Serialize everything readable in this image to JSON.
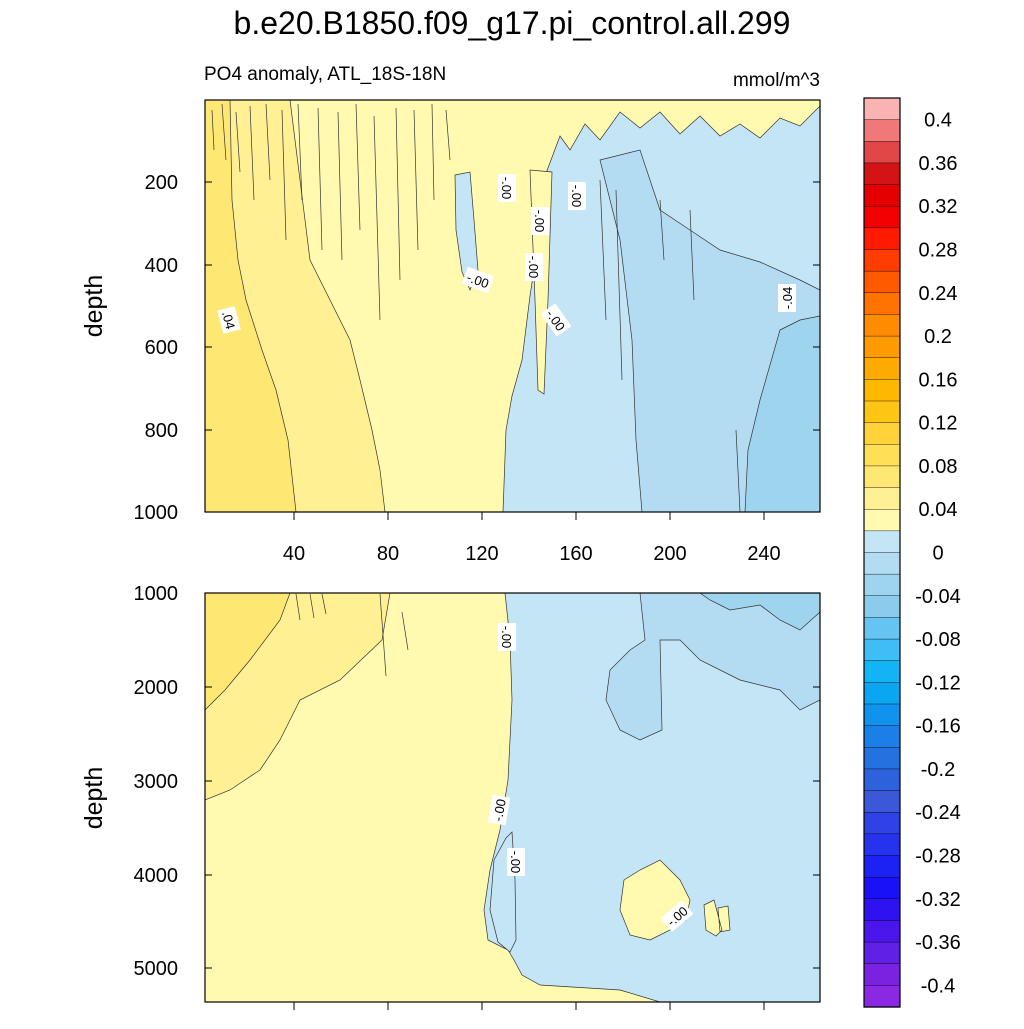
{
  "chart_data": {
    "type": "contour",
    "title": "b.e20.B1850.f09_g17.pi_control.all.299",
    "subtitle_left": "PO4 anomaly, ATL_18S-18N",
    "subtitle_right": "mmol/m^3",
    "colorbar": {
      "labels": [
        "0.4",
        "0.36",
        "0.32",
        "0.28",
        "0.24",
        "0.2",
        "0.16",
        "0.12",
        "0.08",
        "0.04",
        "0",
        "-0.04",
        "-0.08",
        "-0.12",
        "-0.16",
        "-0.2",
        "-0.24",
        "-0.28",
        "-0.32",
        "-0.36",
        "-0.4"
      ],
      "colors": [
        "#f9b3b3",
        "#f07878",
        "#e04848",
        "#d41414",
        "#e40000",
        "#f20000",
        "#ff1a00",
        "#ff3d00",
        "#ff5a00",
        "#ff7400",
        "#ff8c00",
        "#ff9a00",
        "#ffaa00",
        "#ffb800",
        "#ffc514",
        "#ffd23a",
        "#ffdf55",
        "#ffe774",
        "#fff093",
        "#fffaaf",
        "#c4e5f6",
        "#b3dcf2",
        "#9fd4ef",
        "#8ccbeb",
        "#66c4f2",
        "#3fbdf5",
        "#12b4f5",
        "#0aa6f2",
        "#1093ee",
        "#1a80e8",
        "#2472e0",
        "#2e62dc",
        "#3a58d8",
        "#2f42e6",
        "#2532ee",
        "#1c22f4",
        "#1a12f7",
        "#2e12ef",
        "#4a16eb",
        "#6020e6",
        "#7a22e0",
        "#8a28e4"
      ]
    },
    "panels": [
      {
        "name": "upper",
        "ylabel": "depth",
        "ylim": [
          0,
          1000
        ],
        "yticks": [
          "200",
          "400",
          "600",
          "800",
          "1000"
        ],
        "xlim": [
          0,
          262
        ],
        "xticks": [
          "40",
          "80",
          "120",
          "160",
          "200",
          "240"
        ],
        "contour_labels": [
          "-.00",
          "-.00",
          "-.00",
          "-.00",
          "-.00",
          "-.00",
          ".04",
          "-.04"
        ]
      },
      {
        "name": "lower",
        "ylabel": "depth",
        "ylim": [
          1000,
          5400
        ],
        "yticks": [
          "1000",
          "2000",
          "3000",
          "4000",
          "5000"
        ],
        "xlim": [
          0,
          262
        ],
        "contour_labels": [
          "-.00",
          "-.00",
          "-.00",
          "-.00"
        ]
      }
    ]
  }
}
